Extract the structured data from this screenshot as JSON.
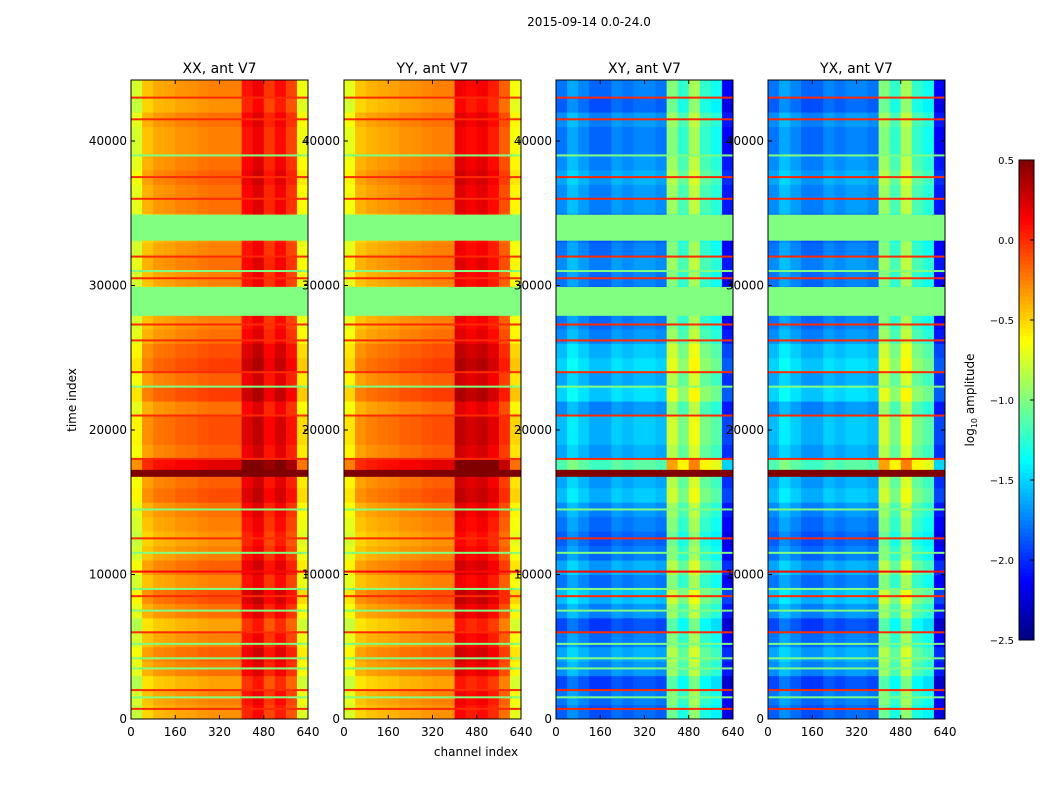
{
  "chart_data": {
    "type": "heatmap",
    "title": "2015-09-14 0.0-24.0",
    "xlabel": "channel index",
    "ylabel": "time index",
    "xlim": [
      0,
      640
    ],
    "ylim": [
      0,
      44220
    ],
    "xticks": [
      "0",
      "160",
      "320",
      "480",
      "640"
    ],
    "xtick_values": [
      0,
      160,
      320,
      480,
      640
    ],
    "yticks": [
      "0",
      "10000",
      "20000",
      "30000",
      "40000"
    ],
    "ytick_values": [
      0,
      10000,
      20000,
      30000,
      40000
    ],
    "colormap": "jet",
    "colorbar": {
      "label": "log10 amplitude",
      "label_main": "log",
      "label_sub": "10",
      "label_rest": " amplitude",
      "range": [
        -2.5,
        0.5
      ],
      "ticks": [
        "0.5",
        "0.0",
        "−0.5",
        "−1.0",
        "−1.5",
        "−2.0",
        "−2.5"
      ],
      "tick_values": [
        0.5,
        0.0,
        -0.5,
        -1.0,
        -1.5,
        -2.0,
        -2.5
      ]
    },
    "channel_bin": 40,
    "time_bin": 1000,
    "panels": [
      {
        "title": "XX, ant V7",
        "column_profile": [
          -0.8,
          -0.5,
          -0.42,
          -0.4,
          -0.36,
          -0.35,
          -0.32,
          -0.3,
          -0.3,
          -0.3,
          0.02,
          0.12,
          -0.08,
          0.05,
          -0.12,
          -0.72
        ],
        "row_gain": 1.0
      },
      {
        "title": "YY, ant V7",
        "column_profile": [
          -0.75,
          -0.5,
          -0.45,
          -0.42,
          -0.4,
          -0.36,
          -0.35,
          -0.32,
          -0.3,
          -0.3,
          0.12,
          0.05,
          0.1,
          0.0,
          -0.2,
          -0.7
        ],
        "row_gain": 1.0
      },
      {
        "title": "XY, ant V7",
        "column_profile": [
          -1.85,
          -1.7,
          -1.8,
          -1.9,
          -1.9,
          -1.8,
          -1.85,
          -1.8,
          -1.8,
          -1.85,
          -1.05,
          -1.3,
          -0.95,
          -1.3,
          -1.4,
          -2.2
        ],
        "row_gain": 1.4
      },
      {
        "title": "YX, ant V7",
        "column_profile": [
          -1.85,
          -1.7,
          -1.8,
          -1.9,
          -1.9,
          -1.8,
          -1.85,
          -1.8,
          -1.8,
          -1.85,
          -1.05,
          -1.3,
          -0.95,
          -1.3,
          -1.4,
          -2.2
        ],
        "row_gain": 1.4
      }
    ],
    "row_offsets": [
      0.0,
      0.05,
      -0.05,
      0.1,
      0.15,
      0.05,
      -0.05,
      0.1,
      0.2,
      0.05,
      0.15,
      0.05,
      0.0,
      0.05,
      0.1,
      0.2,
      0.15,
      0.5,
      0.15,
      0.2,
      0.2,
      0.1,
      0.25,
      0.15,
      0.25,
      0.2,
      0.1,
      0.05,
      0,
      0,
      0.05,
      0.1,
      0.05,
      0,
      0,
      0.1,
      0.1,
      0.15,
      0.1,
      0.05,
      0.05,
      0.1,
      0.0,
      0.05,
      0.05
    ],
    "flagged_ranges": [
      [
        27900,
        29900
      ],
      [
        33100,
        34900
      ]
    ],
    "flag_value": -1.0,
    "line_events": [
      {
        "t": 700,
        "value": 0.0
      },
      {
        "t": 2000,
        "value": 0.0
      },
      {
        "t": 6000,
        "value": 0.0
      },
      {
        "t": 8500,
        "value": 0.0
      },
      {
        "t": 10200,
        "value": 0.1
      },
      {
        "t": 12500,
        "value": 0.0
      },
      {
        "t": 17000,
        "value": 0.5
      },
      {
        "t": 18000,
        "value": 0.0
      },
      {
        "t": 21000,
        "value": 0.0
      },
      {
        "t": 24000,
        "value": 0.0
      },
      {
        "t": 26200,
        "value": 0.0
      },
      {
        "t": 27300,
        "value": 0.0
      },
      {
        "t": 30500,
        "value": 0.0
      },
      {
        "t": 32000,
        "value": 0.0
      },
      {
        "t": 36000,
        "value": 0.0
      },
      {
        "t": 37500,
        "value": 0.0
      },
      {
        "t": 41500,
        "value": 0.0
      },
      {
        "t": 43000,
        "value": 0.0
      },
      {
        "t": 1500,
        "value": -1.0
      },
      {
        "t": 3500,
        "value": -1.0
      },
      {
        "t": 4200,
        "value": -1.0
      },
      {
        "t": 5200,
        "value": -1.0
      },
      {
        "t": 7500,
        "value": -1.0
      },
      {
        "t": 9000,
        "value": -1.0
      },
      {
        "t": 11500,
        "value": -1.0
      },
      {
        "t": 14500,
        "value": -1.0
      },
      {
        "t": 23000,
        "value": -1.0
      },
      {
        "t": 31000,
        "value": -1.0
      },
      {
        "t": 39000,
        "value": -1.0
      }
    ]
  }
}
